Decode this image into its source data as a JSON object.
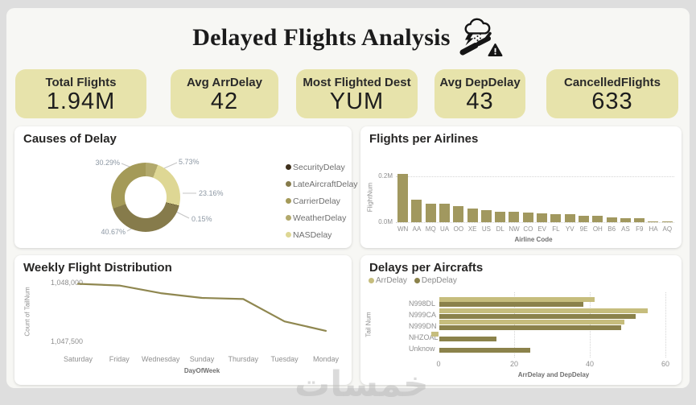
{
  "page": {
    "watermark": "خمسات"
  },
  "header": {
    "title": "Delayed Flights Analysis",
    "icon": "storm-plane-warning"
  },
  "kpis": [
    {
      "label": "Total Flights",
      "value": "1.94M"
    },
    {
      "label": "Avg ArrDelay",
      "value": "42"
    },
    {
      "label": "Most Flighted Dest",
      "value": "YUM"
    },
    {
      "label": "Avg DepDelay",
      "value": "43"
    },
    {
      "label": "CancelledFlights",
      "value": "633"
    }
  ],
  "chart_data": [
    {
      "id": "causes-of-delay",
      "type": "pie",
      "donut": true,
      "title": "Causes of Delay",
      "labels": [
        "SecurityDelay",
        "LateAircraftDelay",
        "CarrierDelay",
        "WeatherDelay",
        "NASDelay"
      ],
      "values": [
        0.15,
        40.67,
        30.29,
        5.73,
        23.16
      ],
      "unit": "%",
      "colors": [
        "#3e301c",
        "#867b4b",
        "#a49a58",
        "#b2a96c",
        "#ded794"
      ],
      "draw_order": [
        3,
        4,
        0,
        1,
        2
      ],
      "legend_position": "right"
    },
    {
      "id": "flights-per-airlines",
      "type": "bar",
      "title": "Flights per Airlines",
      "xlabel": "Airline Code",
      "ylabel": "FlightNum",
      "categories": [
        "WN",
        "AA",
        "MQ",
        "UA",
        "OO",
        "XE",
        "US",
        "DL",
        "NW",
        "CO",
        "EV",
        "FL",
        "YV",
        "9E",
        "OH",
        "B6",
        "AS",
        "F9",
        "HA",
        "AQ"
      ],
      "values": [
        0.21,
        0.1,
        0.081,
        0.081,
        0.071,
        0.059,
        0.052,
        0.046,
        0.046,
        0.042,
        0.04,
        0.035,
        0.035,
        0.03,
        0.028,
        0.022,
        0.016,
        0.016,
        0.004,
        0.004
      ],
      "value_unit": "M",
      "ylim": [
        0,
        0.22
      ],
      "yticks": [
        "0.2M",
        "0.0M"
      ],
      "bar_color": "#a1985f",
      "grid": "dotted horizontal"
    },
    {
      "id": "weekly-flight-distribution",
      "type": "line",
      "title": "Weekly Flight Distribution",
      "xlabel": "DayOfWeek",
      "ylabel": "Count of TailNum",
      "categories": [
        "Saturday",
        "Friday",
        "Wednesday",
        "Sunday",
        "Thursday",
        "Tuesday",
        "Monday"
      ],
      "values": [
        1047990,
        1047975,
        1047910,
        1047870,
        1047860,
        1047670,
        1047590
      ],
      "ylim": [
        1047500,
        1048000
      ],
      "yticks": [
        "1,048,000",
        "1,047,500"
      ],
      "line_color": "#8f8750",
      "grid": "off"
    },
    {
      "id": "delays-per-aircrafts",
      "type": "bar",
      "orientation": "horizontal",
      "title": "Delays per Aircrafts",
      "xlabel": "ArrDelay and DepDelay",
      "ylabel": "Tail Num",
      "categories": [
        "N998DL",
        "N999CA",
        "N999DN",
        "NHZOAL",
        "Unknow"
      ],
      "series": [
        {
          "name": "ArrDelay",
          "color": "#c6bd7d",
          "values": [
            41,
            55,
            49,
            -2,
            0
          ]
        },
        {
          "name": "DepDelay",
          "color": "#8b824b",
          "values": [
            38,
            52,
            48,
            15,
            24
          ]
        }
      ],
      "xticks": [
        0,
        20,
        40,
        60
      ],
      "xlim": [
        -5,
        62
      ],
      "legend_position": "top",
      "grid": "dotted vertical"
    }
  ]
}
